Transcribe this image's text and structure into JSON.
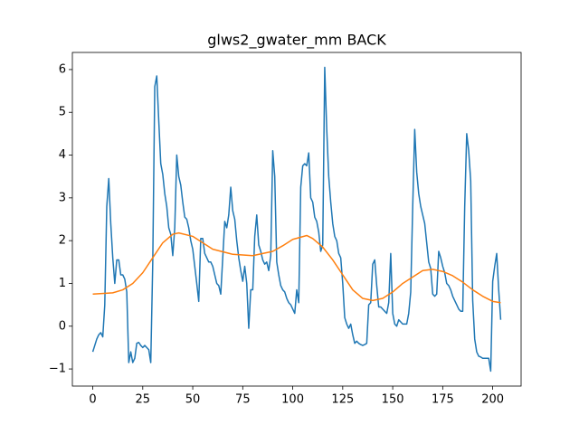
{
  "chart_data": {
    "type": "line",
    "title": "glws2_gwater_mm BACK",
    "xlim": [
      -10.2,
      214.2
    ],
    "xticks": [
      0,
      25,
      50,
      75,
      100,
      125,
      150,
      175,
      200
    ],
    "ylim": [
      -1.4,
      6.4
    ],
    "yticks": [
      {
        "value": -1,
        "label": "−1"
      },
      0,
      1,
      2,
      3,
      4,
      5,
      6
    ],
    "grid": false,
    "series": [
      {
        "color": "#1f77b4",
        "x": [
          0,
          1,
          2,
          3,
          4,
          5,
          6,
          7,
          8,
          9,
          10,
          11,
          12,
          13,
          14,
          15,
          16,
          17,
          18,
          19,
          20,
          21,
          22,
          23,
          24,
          25,
          26,
          27,
          28,
          29,
          30,
          31,
          32,
          33,
          34,
          35,
          36,
          37,
          38,
          39,
          40,
          41,
          42,
          43,
          44,
          45,
          46,
          47,
          48,
          49,
          50,
          51,
          52,
          53,
          54,
          55,
          56,
          57,
          58,
          59,
          60,
          61,
          62,
          63,
          64,
          65,
          66,
          67,
          68,
          69,
          70,
          71,
          72,
          73,
          74,
          75,
          76,
          77,
          78,
          79,
          80,
          81,
          82,
          83,
          84,
          85,
          86,
          87,
          88,
          89,
          90,
          91,
          92,
          93,
          94,
          95,
          96,
          97,
          98,
          99,
          100,
          101,
          102,
          103,
          104,
          105,
          106,
          107,
          108,
          109,
          110,
          111,
          112,
          113,
          114,
          115,
          116,
          117,
          118,
          119,
          120,
          121,
          122,
          123,
          124,
          125,
          126,
          127,
          128,
          129,
          130,
          131,
          132,
          133,
          134,
          135,
          136,
          137,
          138,
          139,
          140,
          141,
          142,
          143,
          144,
          145,
          146,
          147,
          148,
          149,
          150,
          151,
          152,
          153,
          154,
          155,
          156,
          157,
          158,
          159,
          160,
          161,
          162,
          163,
          164,
          165,
          166,
          167,
          168,
          169,
          170,
          171,
          172,
          173,
          174,
          175,
          176,
          177,
          178,
          179,
          180,
          181,
          182,
          183,
          184,
          185,
          186,
          187,
          188,
          189,
          190,
          191,
          192,
          193,
          194,
          195,
          196,
          197,
          198,
          199,
          200,
          201,
          202,
          203,
          204
        ],
        "values": [
          -0.6,
          -0.45,
          -0.3,
          -0.2,
          -0.15,
          -0.25,
          0.5,
          2.8,
          3.45,
          2.4,
          1.6,
          1.0,
          1.55,
          1.55,
          1.2,
          1.2,
          1.1,
          0.8,
          -0.85,
          -0.6,
          -0.85,
          -0.75,
          -0.4,
          -0.38,
          -0.45,
          -0.5,
          -0.45,
          -0.5,
          -0.55,
          -0.85,
          1.5,
          5.6,
          5.85,
          4.8,
          3.8,
          3.55,
          3.1,
          2.8,
          2.3,
          2.15,
          1.65,
          2.3,
          4.0,
          3.5,
          3.3,
          2.9,
          2.55,
          2.5,
          2.3,
          2.0,
          1.8,
          1.4,
          1.0,
          0.58,
          2.05,
          2.05,
          1.7,
          1.6,
          1.5,
          1.5,
          1.4,
          1.2,
          1.0,
          0.95,
          0.75,
          1.6,
          2.45,
          2.3,
          2.6,
          3.25,
          2.7,
          2.5,
          2.0,
          1.6,
          1.3,
          1.05,
          1.4,
          1.0,
          -0.05,
          0.85,
          0.85,
          2.1,
          2.6,
          1.9,
          1.75,
          1.55,
          1.45,
          1.5,
          1.3,
          1.65,
          4.1,
          3.5,
          1.5,
          1.2,
          0.95,
          0.85,
          0.8,
          0.65,
          0.55,
          0.5,
          0.4,
          0.3,
          0.85,
          0.55,
          3.25,
          3.75,
          3.8,
          3.75,
          4.05,
          3.0,
          2.9,
          2.55,
          2.45,
          2.2,
          1.75,
          1.9,
          6.05,
          4.6,
          3.5,
          2.9,
          2.4,
          2.1,
          2.0,
          1.7,
          1.6,
          1.0,
          0.2,
          0.05,
          -0.05,
          0.05,
          -0.2,
          -0.4,
          -0.35,
          -0.4,
          -0.43,
          -0.45,
          -0.43,
          -0.4,
          0.5,
          0.55,
          1.45,
          1.55,
          0.95,
          0.45,
          0.45,
          0.4,
          0.35,
          0.3,
          0.55,
          1.7,
          0.3,
          0.05,
          0.0,
          0.15,
          0.1,
          0.05,
          0.05,
          0.05,
          0.3,
          0.8,
          2.8,
          4.6,
          3.6,
          3.1,
          2.8,
          2.6,
          2.4,
          1.95,
          1.5,
          1.35,
          0.75,
          0.7,
          0.75,
          1.75,
          1.6,
          1.4,
          1.25,
          1.0,
          0.95,
          0.85,
          0.7,
          0.6,
          0.5,
          0.4,
          0.35,
          0.35,
          2.8,
          4.5,
          4.1,
          3.4,
          0.6,
          -0.3,
          -0.6,
          -0.7,
          -0.72,
          -0.75,
          -0.75,
          -0.75,
          -0.75,
          -1.05,
          1.05,
          1.4,
          1.7,
          0.85,
          0.15
        ]
      },
      {
        "color": "#ff7f0e",
        "x": [
          0,
          10,
          15,
          20,
          25,
          30,
          35,
          40,
          43,
          50,
          55,
          60,
          70,
          80,
          90,
          95,
          100,
          107,
          110,
          115,
          120,
          125,
          130,
          135,
          140,
          145,
          150,
          155,
          160,
          165,
          170,
          175,
          180,
          185,
          190,
          195,
          200,
          204
        ],
        "values": [
          0.75,
          0.78,
          0.85,
          1.0,
          1.25,
          1.6,
          1.95,
          2.15,
          2.18,
          2.1,
          1.95,
          1.8,
          1.68,
          1.65,
          1.75,
          1.88,
          2.03,
          2.12,
          2.05,
          1.85,
          1.55,
          1.2,
          0.85,
          0.65,
          0.6,
          0.65,
          0.8,
          1.0,
          1.15,
          1.3,
          1.33,
          1.28,
          1.18,
          1.03,
          0.85,
          0.7,
          0.58,
          0.55
        ]
      }
    ]
  }
}
